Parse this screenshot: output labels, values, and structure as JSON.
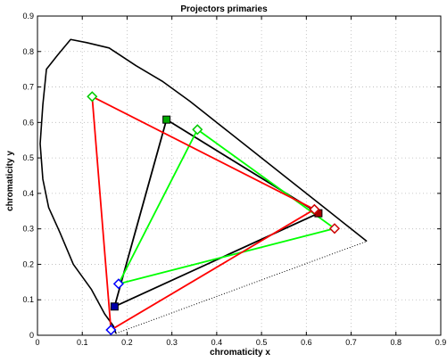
{
  "chart_data": {
    "type": "line",
    "title": "Projectors primaries",
    "xlabel": "chromaticity x",
    "ylabel": "chromaticity y",
    "xlim": [
      0,
      0.9
    ],
    "ylim": [
      0,
      0.9
    ],
    "grid": true,
    "x_ticks": [
      "0",
      "0.1",
      "0.2",
      "0.3",
      "0.4",
      "0.5",
      "0.6",
      "0.7",
      "0.8",
      "0.9"
    ],
    "y_ticks": [
      "0",
      "0.1",
      "0.2",
      "0.3",
      "0.4",
      "0.5",
      "0.6",
      "0.7",
      "0.8",
      "0.9"
    ],
    "spectral_locus": {
      "color": "#000000",
      "points": [
        [
          0.735,
          0.265
        ],
        [
          0.64,
          0.36
        ],
        [
          0.55,
          0.45
        ],
        [
          0.48,
          0.52
        ],
        [
          0.4,
          0.6
        ],
        [
          0.34,
          0.66
        ],
        [
          0.28,
          0.715
        ],
        [
          0.22,
          0.76
        ],
        [
          0.16,
          0.81
        ],
        [
          0.11,
          0.825
        ],
        [
          0.074,
          0.834
        ],
        [
          0.045,
          0.79
        ],
        [
          0.02,
          0.75
        ],
        [
          0.012,
          0.65
        ],
        [
          0.006,
          0.54
        ],
        [
          0.012,
          0.44
        ],
        [
          0.025,
          0.36
        ],
        [
          0.05,
          0.29
        ],
        [
          0.08,
          0.2
        ],
        [
          0.12,
          0.13
        ],
        [
          0.15,
          0.06
        ],
        [
          0.17,
          0.025
        ],
        [
          0.175,
          0.005
        ]
      ]
    },
    "purple_line": {
      "color": "#000000",
      "style": "dotted",
      "points": [
        [
          0.175,
          0.005
        ],
        [
          0.735,
          0.265
        ]
      ]
    },
    "series": [
      {
        "color": "#000000",
        "marker": "filled-square",
        "marker_color": "#000000",
        "points": [
          [
            0.288,
            0.608
          ],
          [
            0.627,
            0.344
          ],
          [
            0.172,
            0.081
          ]
        ]
      },
      {
        "color": "#ff0000",
        "marker": "diamond",
        "marker_color": "#cc0000",
        "points": [
          [
            0.122,
            0.673
          ],
          [
            0.618,
            0.355
          ],
          [
            0.164,
            0.015
          ]
        ]
      },
      {
        "color": "#00ff00",
        "marker": "diamond",
        "marker_color": "#00cc00",
        "points": [
          [
            0.357,
            0.58
          ],
          [
            0.663,
            0.301
          ],
          [
            0.181,
            0.145
          ]
        ]
      }
    ],
    "extra_markers": [
      {
        "x": 0.288,
        "y": 0.608,
        "marker": "filled-square",
        "color": "#00aa00"
      },
      {
        "x": 0.627,
        "y": 0.344,
        "marker": "filled-square",
        "color": "#aa0000"
      },
      {
        "x": 0.172,
        "y": 0.081,
        "marker": "filled-square",
        "color": "#0000aa"
      },
      {
        "x": 0.181,
        "y": 0.145,
        "marker": "diamond",
        "color": "#0000ff"
      },
      {
        "x": 0.164,
        "y": 0.015,
        "marker": "diamond",
        "color": "#0000ff"
      },
      {
        "x": 0.618,
        "y": 0.355,
        "marker": "diamond",
        "color": "#cc0000"
      },
      {
        "x": 0.663,
        "y": 0.301,
        "marker": "diamond",
        "color": "#cc0000"
      },
      {
        "x": 0.122,
        "y": 0.673,
        "marker": "diamond",
        "color": "#00cc00"
      },
      {
        "x": 0.357,
        "y": 0.58,
        "marker": "diamond",
        "color": "#00cc00"
      }
    ]
  }
}
